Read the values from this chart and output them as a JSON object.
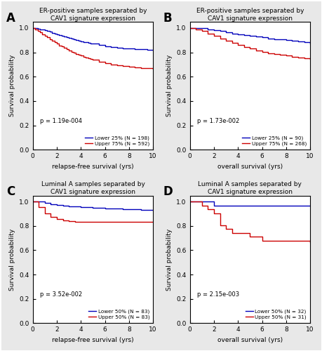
{
  "panels": [
    {
      "label": "A",
      "title": "ER-positive samples separated by\nCAV1 signature expression",
      "xlabel": "relapse-free survival (yrs)",
      "ylabel": "Survival probability",
      "pvalue": "p = 1.19e-004",
      "legend1": "Lower 25% (N = 198)",
      "legend2": "Upper 75% (N = 592)",
      "blue_x": [
        0,
        0.2,
        0.4,
        0.6,
        0.8,
        1.0,
        1.2,
        1.4,
        1.6,
        1.8,
        2.0,
        2.2,
        2.4,
        2.6,
        2.8,
        3.0,
        3.2,
        3.4,
        3.6,
        3.8,
        4.0,
        4.2,
        4.4,
        4.6,
        4.8,
        5.0,
        5.5,
        6.0,
        6.5,
        7.0,
        7.5,
        8.0,
        8.5,
        9.0,
        9.5,
        10.0
      ],
      "blue_y": [
        1.0,
        0.998,
        0.995,
        0.991,
        0.986,
        0.981,
        0.975,
        0.968,
        0.961,
        0.954,
        0.948,
        0.942,
        0.936,
        0.93,
        0.924,
        0.918,
        0.913,
        0.907,
        0.902,
        0.897,
        0.892,
        0.887,
        0.882,
        0.878,
        0.874,
        0.87,
        0.86,
        0.852,
        0.845,
        0.84,
        0.835,
        0.831,
        0.828,
        0.825,
        0.823,
        0.82
      ],
      "red_x": [
        0,
        0.2,
        0.4,
        0.6,
        0.8,
        1.0,
        1.2,
        1.4,
        1.6,
        1.8,
        2.0,
        2.2,
        2.4,
        2.6,
        2.8,
        3.0,
        3.2,
        3.4,
        3.6,
        3.8,
        4.0,
        4.2,
        4.4,
        4.6,
        4.8,
        5.0,
        5.5,
        6.0,
        6.5,
        7.0,
        7.5,
        8.0,
        8.5,
        9.0,
        9.5,
        10.0
      ],
      "red_y": [
        1.0,
        0.99,
        0.978,
        0.964,
        0.95,
        0.936,
        0.922,
        0.908,
        0.895,
        0.882,
        0.87,
        0.858,
        0.847,
        0.836,
        0.825,
        0.815,
        0.806,
        0.797,
        0.789,
        0.781,
        0.773,
        0.766,
        0.759,
        0.752,
        0.745,
        0.739,
        0.724,
        0.712,
        0.702,
        0.694,
        0.688,
        0.682,
        0.677,
        0.673,
        0.67,
        0.667
      ]
    },
    {
      "label": "B",
      "title": "ER-positive samples separated by\nCAV1 signature expression",
      "xlabel": "overall survival (yrs)",
      "ylabel": "Survival probability",
      "pvalue": "p = 1.73e-002",
      "legend1": "Lower 25% (N = 90)",
      "legend2": "Upper 75% (N = 268)",
      "blue_x": [
        0,
        0.5,
        1.0,
        1.5,
        2.0,
        2.5,
        3.0,
        3.5,
        4.0,
        4.5,
        5.0,
        5.5,
        6.0,
        6.5,
        7.0,
        7.5,
        8.0,
        8.5,
        9.0,
        9.5,
        10.0
      ],
      "blue_y": [
        1.0,
        1.0,
        0.997,
        0.991,
        0.985,
        0.974,
        0.963,
        0.956,
        0.95,
        0.944,
        0.938,
        0.93,
        0.922,
        0.915,
        0.91,
        0.905,
        0.9,
        0.895,
        0.89,
        0.882,
        0.874
      ],
      "red_x": [
        0,
        0.5,
        1.0,
        1.5,
        2.0,
        2.5,
        3.0,
        3.5,
        4.0,
        4.5,
        5.0,
        5.5,
        6.0,
        6.5,
        7.0,
        7.5,
        8.0,
        8.5,
        9.0,
        9.5,
        10.0
      ],
      "red_y": [
        1.0,
        0.99,
        0.974,
        0.955,
        0.934,
        0.912,
        0.893,
        0.876,
        0.861,
        0.846,
        0.83,
        0.816,
        0.804,
        0.794,
        0.784,
        0.778,
        0.772,
        0.765,
        0.758,
        0.752,
        0.748
      ]
    },
    {
      "label": "C",
      "title": "Luminal A samples separated by\nCAV1 signature expression",
      "xlabel": "relapse-free survival (yrs)",
      "ylabel": "Survival probability",
      "pvalue": "p = 3.52e-002",
      "legend1": "Lower 50% (N = 83)",
      "legend2": "Upper 50% (N = 83)",
      "blue_x": [
        0,
        0.5,
        1.0,
        1.5,
        2.0,
        2.5,
        3.0,
        3.5,
        4.0,
        4.5,
        5.0,
        5.5,
        6.0,
        6.5,
        7.0,
        7.5,
        8.0,
        8.5,
        9.0,
        9.5,
        10.0
      ],
      "blue_y": [
        1.0,
        1.0,
        0.988,
        0.98,
        0.974,
        0.968,
        0.962,
        0.958,
        0.954,
        0.952,
        0.95,
        0.948,
        0.946,
        0.944,
        0.942,
        0.94,
        0.938,
        0.936,
        0.934,
        0.932,
        0.93
      ],
      "red_x": [
        0,
        0.5,
        1.0,
        1.5,
        2.0,
        2.5,
        3.0,
        3.5,
        4.0,
        4.5,
        5.0,
        5.5,
        6.0,
        6.5,
        7.0,
        7.5,
        8.0,
        8.5,
        9.0,
        9.5,
        10.0
      ],
      "red_y": [
        1.0,
        0.952,
        0.904,
        0.876,
        0.858,
        0.848,
        0.84,
        0.836,
        0.834,
        0.832,
        0.832,
        0.832,
        0.832,
        0.832,
        0.832,
        0.832,
        0.832,
        0.832,
        0.832,
        0.832,
        0.832
      ]
    },
    {
      "label": "D",
      "title": "Luminal A samples separated by\nCAV1 signature expression",
      "xlabel": "overall survival (yrs)",
      "ylabel": "Survival probability",
      "pvalue": "p = 2.15e-003",
      "legend1": "Lower 50% (N = 32)",
      "legend2": "Upper 50% (N = 31)",
      "blue_x": [
        0,
        0.5,
        1.0,
        1.5,
        2.0,
        2.5,
        3.0,
        3.5,
        4.0,
        4.5,
        5.0,
        5.5,
        6.0,
        6.5,
        7.0,
        7.5,
        8.0,
        8.5,
        9.0,
        9.5,
        10.0
      ],
      "blue_y": [
        1.0,
        1.0,
        1.0,
        1.0,
        0.969,
        0.969,
        0.969,
        0.969,
        0.969,
        0.969,
        0.969,
        0.969,
        0.969,
        0.969,
        0.969,
        0.969,
        0.969,
        0.969,
        0.969,
        0.969,
        0.969
      ],
      "red_x": [
        0,
        0.5,
        1.0,
        1.5,
        2.0,
        2.5,
        3.0,
        3.5,
        4.0,
        4.5,
        5.0,
        5.5,
        6.0,
        6.5,
        7.0,
        7.5,
        8.0,
        8.5,
        9.0,
        9.5,
        10.0
      ],
      "red_y": [
        1.0,
        1.0,
        0.968,
        0.935,
        0.903,
        0.806,
        0.774,
        0.742,
        0.742,
        0.742,
        0.71,
        0.71,
        0.677,
        0.677,
        0.677,
        0.677,
        0.677,
        0.677,
        0.677,
        0.677,
        0.665
      ]
    }
  ],
  "blue_color": "#0000bb",
  "red_color": "#cc0000",
  "bg_color": "#ffffff",
  "yticks": [
    0,
    0.2,
    0.4,
    0.6,
    0.8,
    1.0
  ],
  "xticks": [
    0,
    2,
    4,
    6,
    8,
    10
  ],
  "ylim": [
    0,
    1.05
  ],
  "xlim": [
    0,
    10
  ],
  "fig_bg": "#e8e8e8"
}
